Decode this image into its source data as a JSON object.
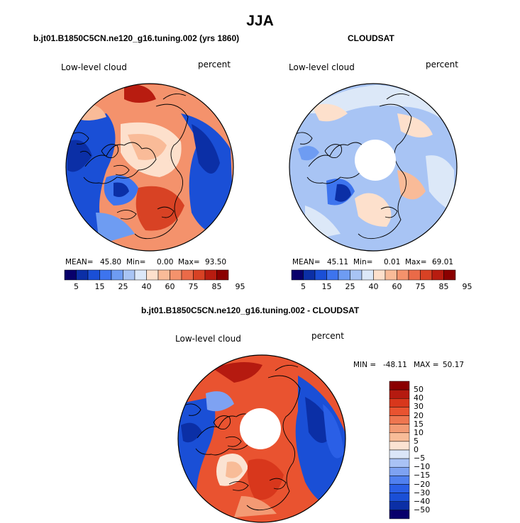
{
  "title": "JJA",
  "palette": {
    "seq": [
      "#08006b",
      "#0b2fa6",
      "#1a4fd6",
      "#3d74ee",
      "#6e9cf2",
      "#a8c4f4",
      "#dce8f8",
      "#fde0cc",
      "#f9bb98",
      "#f4926c",
      "#ea6a48",
      "#d84224",
      "#b81c10",
      "#8a0000"
    ],
    "diff": [
      "#08006b",
      "#0b2fa6",
      "#1a4fd6",
      "#2a5fe6",
      "#5080ef",
      "#7ea2f2",
      "#a9c2f5",
      "#dbe6f8",
      "#fbe3d2",
      "#f8bc98",
      "#f39a74",
      "#ee7650",
      "#e95330",
      "#d8371c",
      "#b51a10",
      "#8a0000"
    ]
  },
  "chart_data": [
    {
      "type": "heatmap",
      "projection": "polar-stereographic",
      "title": "b.jt01.B1850C5CN.ne120_g16.tuning.002 (yrs 1860)",
      "left_label": "Low-level cloud",
      "right_label": "percent",
      "stats": {
        "mean_label": "MEAN=",
        "mean": "45.80",
        "min_label": "Min=",
        "min": "0.00",
        "max_label": "Max=",
        "max": "93.50"
      },
      "colorbar_ticks": [
        "5",
        "15",
        "25",
        "40",
        "60",
        "75",
        "85",
        "95"
      ],
      "levels": [
        5,
        10,
        15,
        20,
        25,
        30,
        40,
        50,
        60,
        70,
        75,
        80,
        85,
        90,
        95
      ],
      "has_polar_hole": false
    },
    {
      "type": "heatmap",
      "projection": "polar-stereographic",
      "title": "CLOUDSAT",
      "left_label": "Low-level cloud",
      "right_label": "percent",
      "stats": {
        "mean_label": "MEAN=",
        "mean": "45.11",
        "min_label": "Min=",
        "min": "0.01",
        "max_label": "Max=",
        "max": "69.01"
      },
      "colorbar_ticks": [
        "5",
        "15",
        "25",
        "40",
        "60",
        "75",
        "85",
        "95"
      ],
      "has_polar_hole": true
    },
    {
      "type": "heatmap",
      "projection": "polar-stereographic",
      "title": "b.jt01.B1850C5CN.ne120_g16.tuning.002 - CLOUDSAT",
      "left_label": "Low-level cloud",
      "right_label": "percent",
      "stats": {
        "min_label": "MIN =",
        "min": "-48.11",
        "max_label": "MAX =",
        "max": "50.17"
      },
      "colorbar_ticks": [
        "50",
        "40",
        "30",
        "20",
        "15",
        "10",
        "5",
        "0",
        "−5",
        "−10",
        "−15",
        "−20",
        "−30",
        "−40",
        "−50"
      ],
      "has_polar_hole": true
    }
  ]
}
